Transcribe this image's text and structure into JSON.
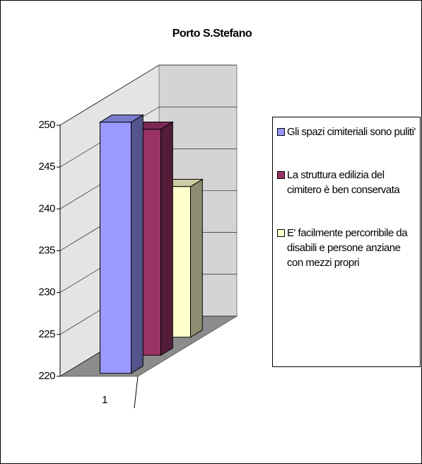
{
  "chart_data": {
    "type": "bar3d",
    "title": "Porto S.Stefano",
    "categories": [
      "1"
    ],
    "series": [
      {
        "name": "Gli spazi cimiteriali sono puliti'",
        "color": "#9999ff",
        "values": [
          250
        ]
      },
      {
        "name": "La struttura edilizia del cimitero è ben conservata",
        "color": "#993366",
        "values": [
          247
        ]
      },
      {
        "name": "E' facilmente percorribile da disabili e persone anziane con mezzi propri",
        "color": "#ffffcc",
        "values": [
          238
        ]
      }
    ],
    "ylim": [
      220,
      250
    ],
    "yticks": [
      220,
      225,
      230,
      235,
      240,
      245,
      250
    ],
    "grid": true,
    "legend": "right"
  }
}
